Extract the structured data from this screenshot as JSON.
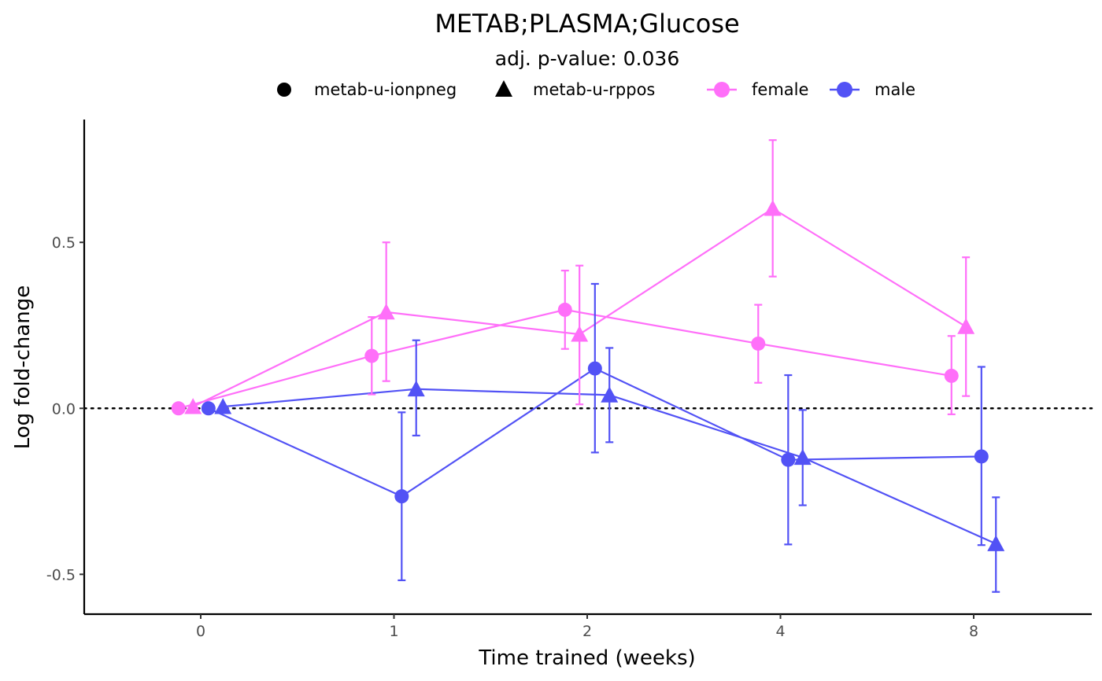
{
  "chart_data": {
    "type": "line",
    "title": "METAB;PLASMA;Glucose",
    "subtitle": "adj. p-value: 0.036",
    "xlabel": "Time trained (weeks)",
    "ylabel": "Log fold-change",
    "categories": [
      "0",
      "1",
      "2",
      "4",
      "8"
    ],
    "yticks": [
      -0.5,
      0.0,
      0.5
    ],
    "ytick_labels": [
      "-0.5",
      "0.0",
      "0.5"
    ],
    "ylim": [
      -0.62,
      0.87
    ],
    "reference_line": {
      "y": 0,
      "style": "dotted"
    },
    "grid": false,
    "legend_placement": "top",
    "shape_legend": [
      {
        "label": "metab-u-ionpneg",
        "shape": "circle"
      },
      {
        "label": "metab-u-rppos",
        "shape": "triangle"
      }
    ],
    "color_legend": [
      {
        "label": "female",
        "color": "#ff6ff9"
      },
      {
        "label": "male",
        "color": "#5252f5"
      }
    ],
    "series": [
      {
        "sex": "female",
        "shape": "circle",
        "color": "#ff6ff9",
        "dodge": -0.115,
        "values": [
          0.0,
          0.158,
          0.297,
          0.195,
          0.098
        ],
        "lower": [
          0.0,
          0.042,
          0.179,
          0.077,
          -0.018
        ],
        "upper": [
          0.0,
          0.275,
          0.415,
          0.312,
          0.218
        ]
      },
      {
        "sex": "female",
        "shape": "triangle",
        "color": "#ff6ff9",
        "dodge": -0.04,
        "values": [
          0.005,
          0.29,
          0.223,
          0.602,
          0.246
        ],
        "lower": [
          0.005,
          0.082,
          0.012,
          0.397,
          0.037
        ],
        "upper": [
          0.005,
          0.5,
          0.43,
          0.808,
          0.455
        ]
      },
      {
        "sex": "male",
        "shape": "circle",
        "color": "#5252f5",
        "dodge": 0.04,
        "values": [
          0.0,
          -0.265,
          0.12,
          -0.155,
          -0.145
        ],
        "lower": [
          0.0,
          -0.518,
          -0.133,
          -0.41,
          -0.412
        ],
        "upper": [
          0.0,
          -0.012,
          0.375,
          0.1,
          0.125
        ]
      },
      {
        "sex": "male",
        "shape": "triangle",
        "color": "#5252f5",
        "dodge": 0.115,
        "values": [
          0.005,
          0.058,
          0.04,
          -0.148,
          -0.408
        ],
        "lower": [
          0.005,
          -0.082,
          -0.102,
          -0.292,
          -0.553
        ],
        "upper": [
          0.005,
          0.205,
          0.182,
          -0.005,
          -0.268
        ]
      }
    ]
  }
}
